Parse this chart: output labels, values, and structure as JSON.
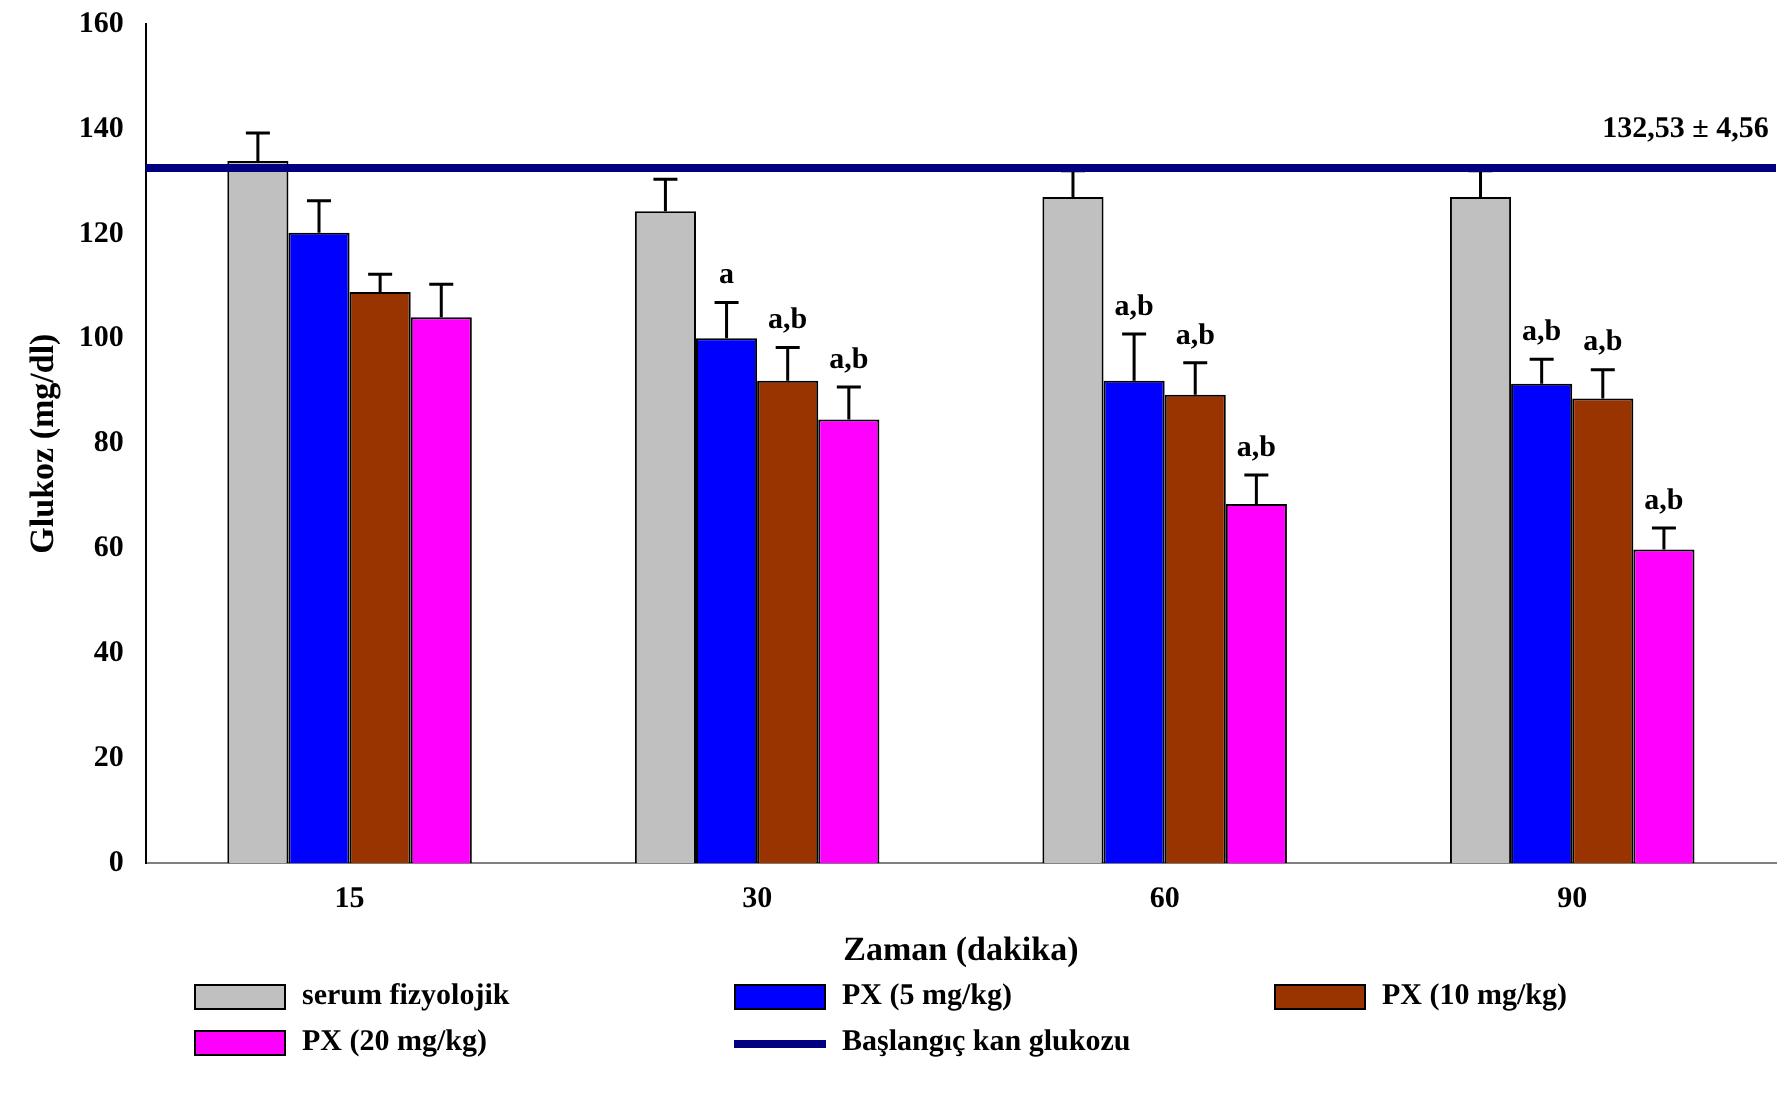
{
  "chart_data": {
    "type": "bar",
    "xlabel": "Zaman (dakika)",
    "ylabel": "Glukoz (mg/dl)",
    "categories": [
      "15",
      "30",
      "60",
      "90"
    ],
    "series": [
      {
        "name": "serum fizyolojik",
        "color": "#c0c0c0",
        "values": [
          133.9,
          124.3,
          127.0,
          127.0
        ],
        "errors": [
          5.3,
          6.1,
          5,
          5
        ]
      },
      {
        "name": "PX (5 mg/kg)",
        "color": "#0000ff",
        "values": [
          120.2,
          100.1,
          92.0,
          91.4
        ],
        "errors": [
          6.1,
          6.8,
          8.9,
          4.7
        ],
        "value_labels": [
          null,
          "a",
          "a,b",
          "a,b"
        ]
      },
      {
        "name": "PX (10 mg/kg)",
        "color": "#993300",
        "values": [
          108.9,
          92.0,
          89.3,
          88.6
        ],
        "errors": [
          3.4,
          6.3,
          6.1,
          5.5
        ],
        "value_labels": [
          null,
          "a,b",
          "a,b",
          "a,b"
        ]
      },
      {
        "name": "PX (20 mg/kg)",
        "color": "#ff00ff",
        "values": [
          104.1,
          84.6,
          68.5,
          59.8
        ],
        "errors": [
          6.3,
          6.2,
          5.5,
          4.1
        ],
        "value_labels": [
          null,
          "a,b",
          "a,b",
          "a,b"
        ]
      }
    ],
    "ref_lines": [
      {
        "axis": "y",
        "value": 132.53,
        "label": "Başlangıç kan glukozu",
        "color": "#000080"
      }
    ],
    "annotations": [
      {
        "text": "132,53 ± 4,56",
        "x": "90",
        "y": 132.53
      }
    ],
    "ylim": [
      0,
      160
    ],
    "yticks": [
      0,
      20,
      40,
      60,
      80,
      100,
      120,
      140,
      160
    ],
    "grid": false,
    "legend": "bottom"
  }
}
